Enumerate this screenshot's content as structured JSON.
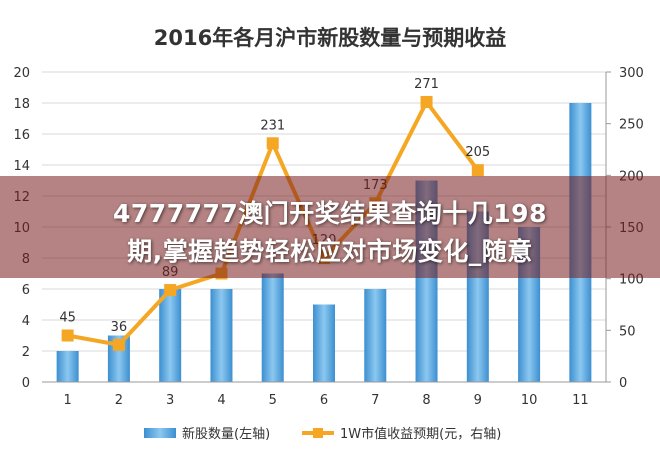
{
  "chart_data": {
    "type": "bar+line",
    "title": "2016年各月沪市新股数量与预期收益",
    "categories": [
      "1",
      "2",
      "3",
      "4",
      "5",
      "6",
      "7",
      "8",
      "9",
      "10",
      "11"
    ],
    "series": [
      {
        "name": "新股数量(左轴)",
        "type": "bar",
        "axis": "left",
        "values": [
          2,
          3,
          6,
          6,
          7,
          5,
          6,
          13,
          11,
          10,
          18
        ]
      },
      {
        "name": "1W市值收益预期(元，右轴)",
        "type": "line",
        "axis": "right",
        "values": [
          45,
          36,
          89,
          105,
          231,
          120,
          173,
          271,
          205,
          null,
          null
        ],
        "labels": [
          "45",
          "36",
          "89",
          "",
          "231",
          "120",
          "173",
          "271",
          "205",
          "",
          ""
        ]
      }
    ],
    "y_left": {
      "min": 0,
      "max": 20,
      "ticks": [
        "0",
        "2",
        "4",
        "6",
        "8",
        "10",
        "12",
        "14",
        "16",
        "18",
        "20"
      ]
    },
    "y_right": {
      "min": 0,
      "max": 300,
      "ticks": [
        "0",
        "50",
        "100",
        "150",
        "200",
        "250",
        "300"
      ]
    },
    "grid": "horizontal",
    "legend_position": "bottom-center",
    "colors": {
      "bar": "#5aa8dd",
      "line": "#f5a623",
      "grid": "#d9d9d9",
      "text": "#333333"
    }
  },
  "overlay": {
    "line1": "4777777澳门开奖结果查询十几198",
    "line2": "期,掌握趋势轻松应对市场变化_随意"
  }
}
